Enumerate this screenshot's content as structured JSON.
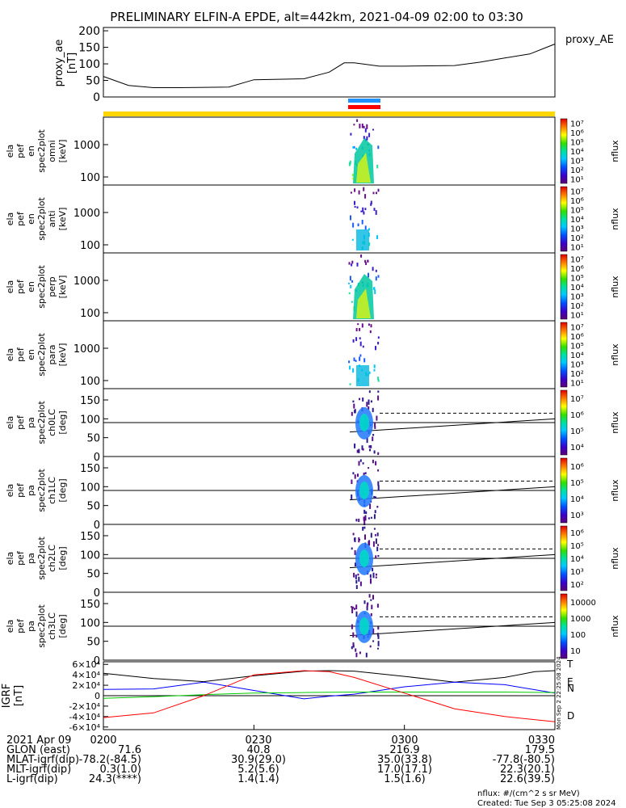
{
  "chart_data": {
    "type": "heatmap",
    "title": "PRELIMINARY ELFIN-A EPDE, alt=442km, 2021-04-09 02:00 to 03:30",
    "x_tick_labels": [
      "0200",
      "0230",
      "0300",
      "0330"
    ],
    "x_range_minutes": [
      0,
      90
    ],
    "ae_panel": {
      "ylabel": [
        "proxy_ae",
        "[nT]"
      ],
      "legend": "proxy_AE",
      "ylim": [
        0,
        210
      ],
      "yticks": [
        "0",
        "50",
        "100",
        "150",
        "200"
      ],
      "series": {
        "t": [
          0,
          5,
          10,
          15,
          25,
          30,
          40,
          45,
          48,
          50,
          55,
          60,
          70,
          75,
          80,
          85,
          88,
          90
        ],
        "v": [
          62,
          35,
          28,
          28,
          30,
          52,
          55,
          75,
          103,
          103,
          93,
          93,
          95,
          105,
          118,
          130,
          148,
          160
        ]
      }
    },
    "energy_panels": [
      {
        "ylabel": [
          "ela",
          "pef",
          "en",
          "spec2plot",
          "omni",
          "[keV]"
        ],
        "yticks": [
          "100",
          "1000"
        ]
      },
      {
        "ylabel": [
          "ela",
          "pef",
          "en",
          "spec2plot",
          "anti",
          "[keV]"
        ],
        "yticks": [
          "100",
          "1000"
        ]
      },
      {
        "ylabel": [
          "ela",
          "pef",
          "en",
          "spec2plot",
          "perp",
          "[keV]"
        ],
        "yticks": [
          "100",
          "1000"
        ]
      },
      {
        "ylabel": [
          "ela",
          "pef",
          "en",
          "spec2plot",
          "para",
          "[keV]"
        ],
        "yticks": [
          "100",
          "1000"
        ]
      }
    ],
    "pa_panels": [
      {
        "ylabel": [
          "ela",
          "pef",
          "pa",
          "spec2plot",
          "ch0LC",
          "[deg]"
        ],
        "yticks": [
          "0",
          "50",
          "100",
          "150"
        ]
      },
      {
        "ylabel": [
          "ela",
          "pef",
          "pa",
          "spec2plot",
          "ch1LC",
          "[deg]"
        ],
        "yticks": [
          "0",
          "50",
          "100",
          "150"
        ]
      },
      {
        "ylabel": [
          "ela",
          "pef",
          "pa",
          "spec2plot",
          "ch2LC",
          "[deg]"
        ],
        "yticks": [
          "0",
          "50",
          "100",
          "150"
        ]
      },
      {
        "ylabel": [
          "ela",
          "pef",
          "pa",
          "spec2plot",
          "ch3LC",
          "[deg]"
        ],
        "yticks": [
          "0",
          "50",
          "100",
          "150"
        ]
      }
    ],
    "colorbar_label": "nflux",
    "colorbars": [
      {
        "ticks": [
          "10¹",
          "10²",
          "10³",
          "10⁴",
          "10⁵",
          "10⁶",
          "10⁷"
        ]
      },
      {
        "ticks": [
          "10¹",
          "10²",
          "10³",
          "10⁴",
          "10⁵",
          "10⁶",
          "10⁷"
        ]
      },
      {
        "ticks": [
          "10¹",
          "10²",
          "10³",
          "10⁴",
          "10⁵",
          "10⁶",
          "10⁷"
        ]
      },
      {
        "ticks": [
          "10¹",
          "10²",
          "10³",
          "10⁴",
          "10⁵",
          "10⁶",
          "10⁷"
        ]
      },
      {
        "ticks": [
          "10⁴",
          "10⁵",
          "10⁶",
          "10⁷"
        ]
      },
      {
        "ticks": [
          "10³",
          "10⁴",
          "10⁵",
          "10⁶"
        ]
      },
      {
        "ticks": [
          "10²",
          "10³",
          "10⁴",
          "10⁵",
          "10⁶"
        ]
      },
      {
        "ticks": [
          "10",
          "100",
          "1000",
          "10000"
        ]
      }
    ],
    "igrf_panel": {
      "ylabel": [
        "IGRF",
        "[nT]"
      ],
      "yticks": [
        "-6×10⁴",
        "-4×10⁴",
        "-2×10⁴",
        "0",
        "2×10⁴",
        "4×10⁴",
        "6×10⁴"
      ],
      "ylim": [
        -65000,
        65000
      ],
      "legend": [
        {
          "name": "T",
          "color": "#000000"
        },
        {
          "name": "E",
          "color": "#00cc00"
        },
        {
          "name": "N",
          "color": "#0000ff"
        },
        {
          "name": "D",
          "color": "#ff0000"
        }
      ],
      "series": [
        {
          "name": "T",
          "color": "#000000",
          "t": [
            0,
            10,
            20,
            30,
            40,
            45,
            50,
            60,
            70,
            80,
            86,
            90
          ],
          "v": [
            43000,
            33000,
            27000,
            38000,
            47000,
            48000,
            47000,
            37000,
            26000,
            35000,
            46000,
            48000
          ]
        },
        {
          "name": "N",
          "color": "#0000ff",
          "t": [
            0,
            10,
            20,
            30,
            40,
            45,
            50,
            60,
            70,
            80,
            90
          ],
          "v": [
            12000,
            13000,
            26000,
            10000,
            -6000,
            -1000,
            3000,
            17000,
            26000,
            21000,
            5000
          ]
        },
        {
          "name": "E",
          "color": "#00cc00",
          "t": [
            0,
            10,
            20,
            30,
            40,
            50,
            60,
            70,
            80,
            90
          ],
          "v": [
            -5000,
            -2000,
            2000,
            5000,
            6000,
            7000,
            7000,
            7000,
            7000,
            6000
          ]
        },
        {
          "name": "D",
          "color": "#ff0000",
          "t": [
            0,
            10,
            20,
            30,
            40,
            45,
            50,
            60,
            70,
            80,
            90
          ],
          "v": [
            -42000,
            -33000,
            0,
            40000,
            48000,
            46000,
            35000,
            5000,
            -25000,
            -40000,
            -50000
          ]
        }
      ],
      "stamp": "Mon Sep  2 22:25:08 2024"
    },
    "ephemeris": {
      "rows": [
        [
          "2021 Apr 09",
          "0200",
          "0230",
          "0300",
          "0330"
        ],
        [
          "GLON (east)",
          "71.6",
          "40.8",
          "216.9",
          "179.5"
        ],
        [
          "MLAT-igrf(dip)",
          "-78.2(-84.5)",
          "30.9(29.0)",
          "35.0(33.8)",
          "-77.8(-80.5)"
        ],
        [
          "MLT-igrf(dip)",
          "0.3(1.0)",
          "5.2(5.6)",
          "17.0(17.1)",
          "22.3(20.1)"
        ],
        [
          "L-igrf(dip)",
          "24.3(****)",
          "1.4(1.4)",
          "1.5(1.6)",
          "22.6(39.5)"
        ]
      ]
    },
    "footer": {
      "units": "nflux: #/(cm^2 s sr MeV)",
      "created": "Created: Tue Sep  3 05:25:08 2024"
    }
  }
}
